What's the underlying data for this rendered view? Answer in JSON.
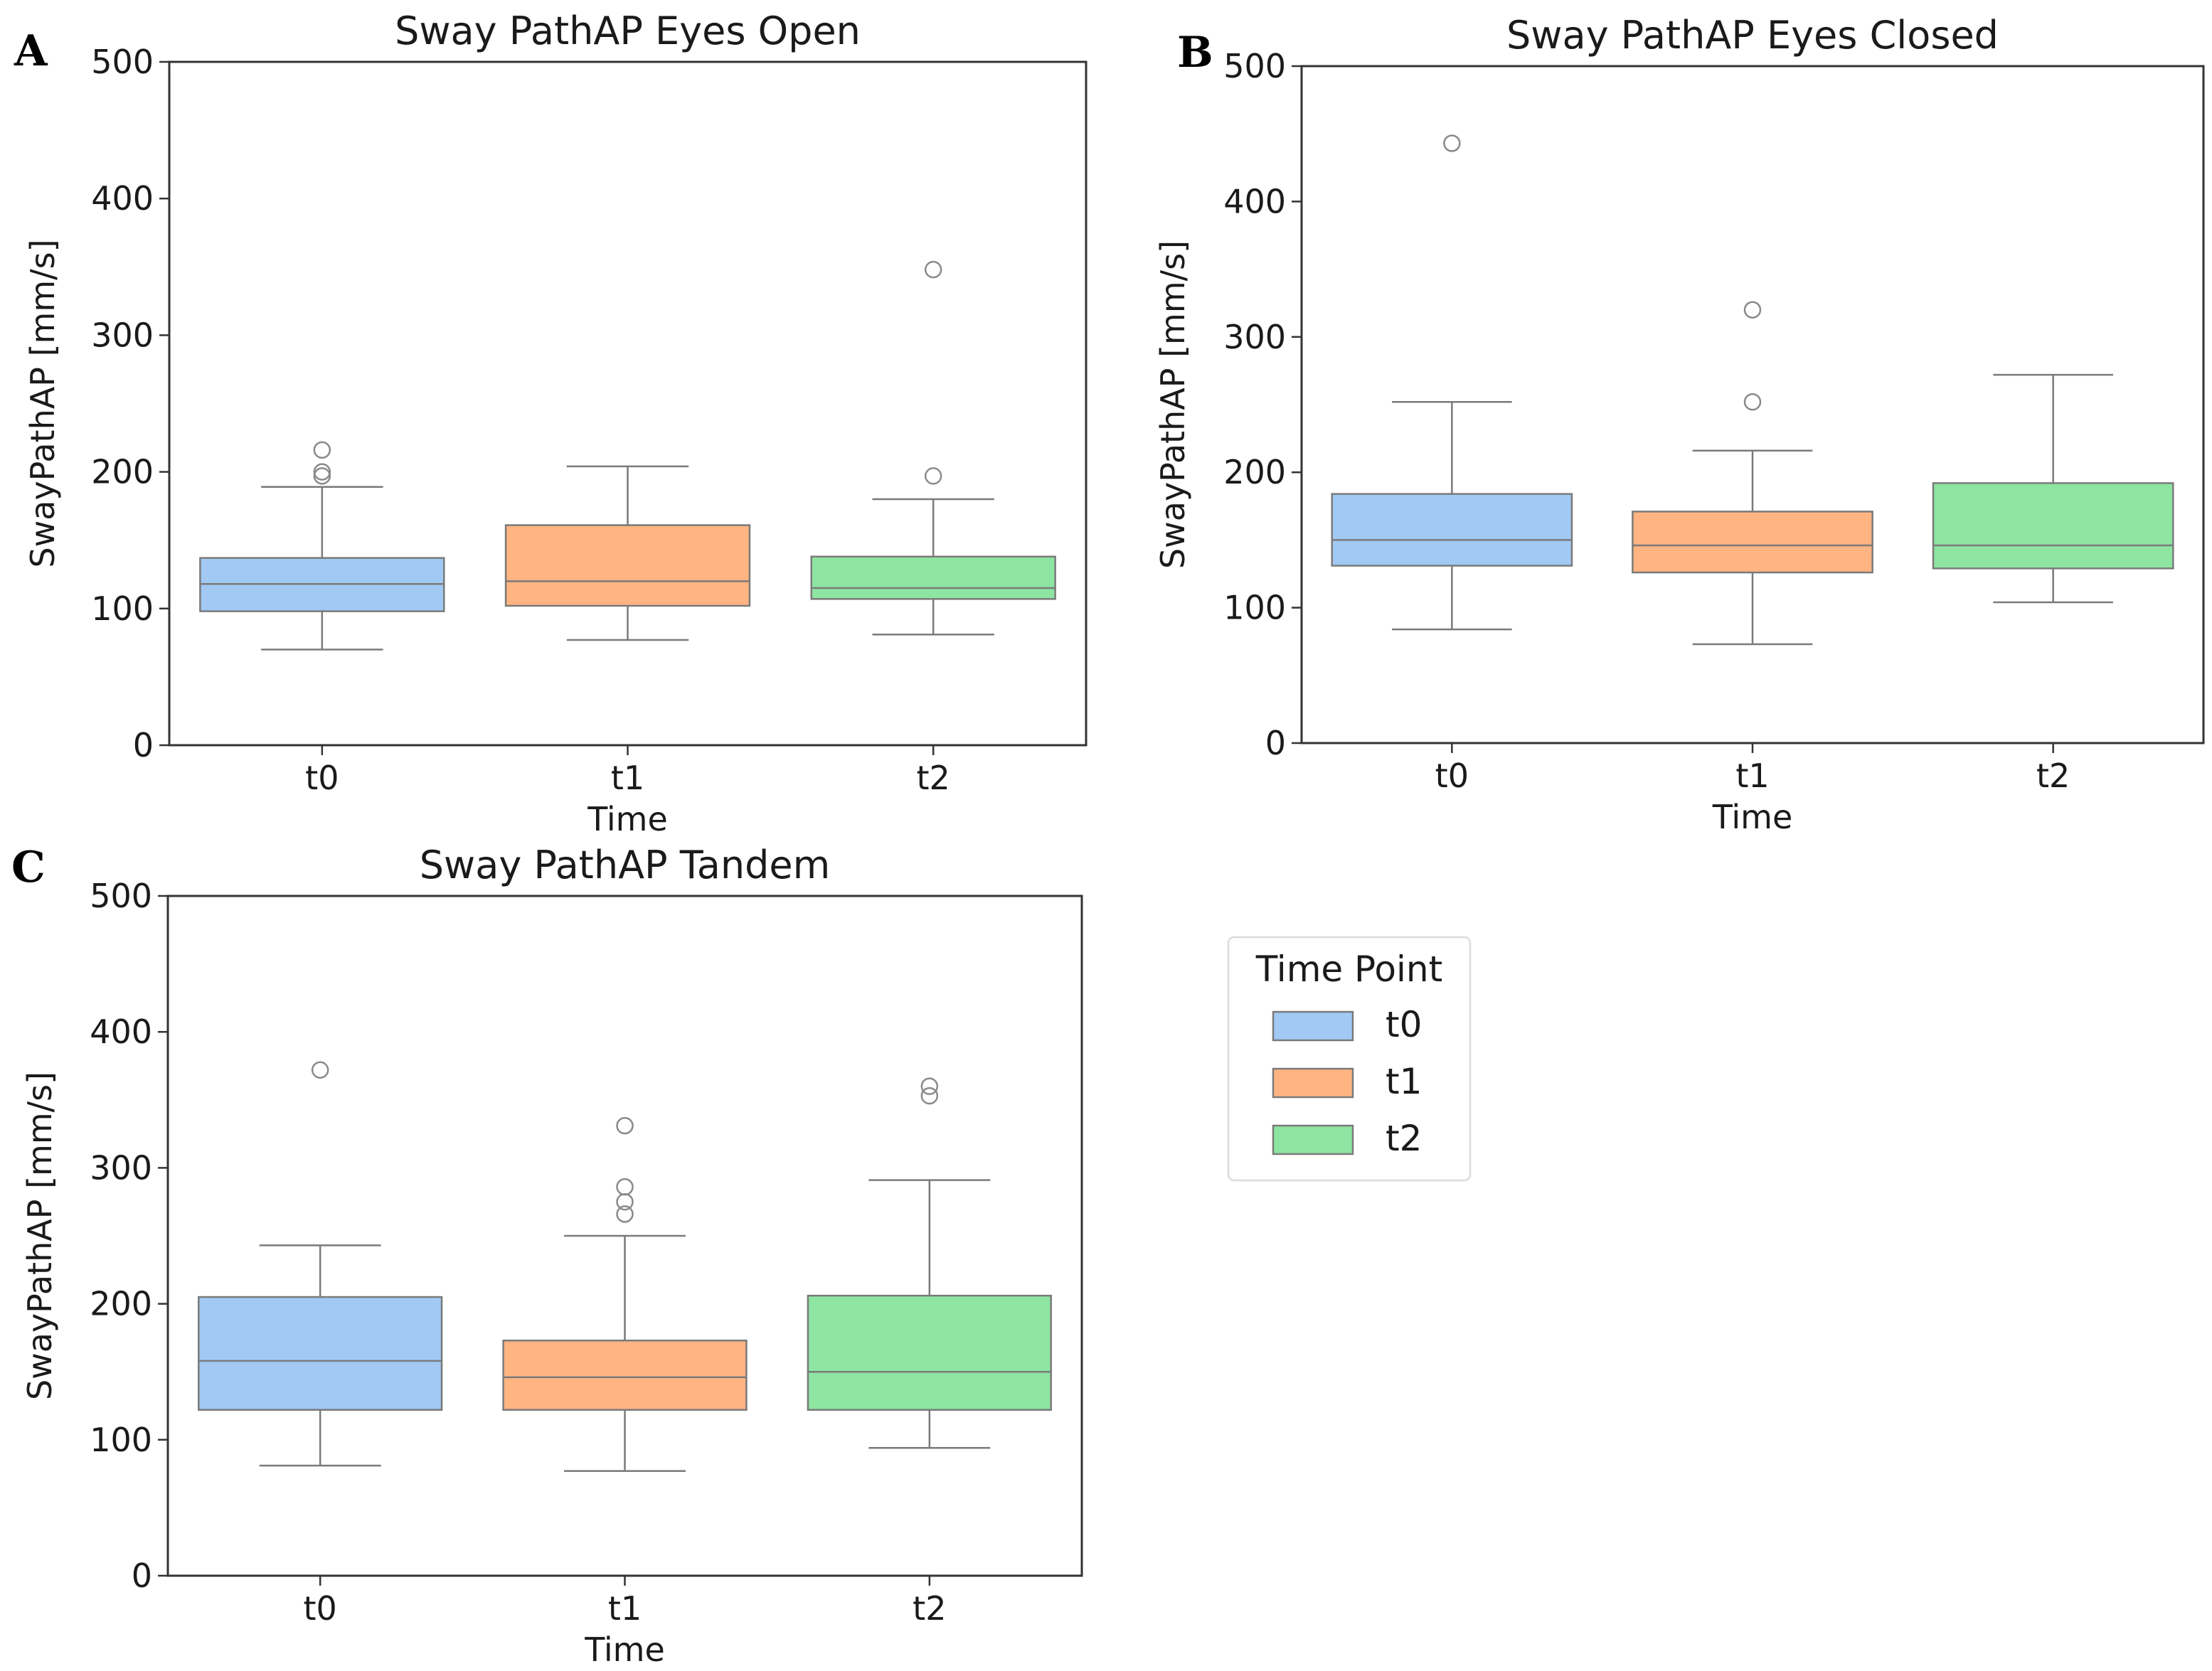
{
  "chart_data": [
    {
      "panel": "A",
      "type": "box",
      "title": "Sway PathAP Eyes Open",
      "xlabel": "Time",
      "ylabel": "SwayPathAP [mm/s]",
      "ylim": [
        0,
        500
      ],
      "yticks": [
        0,
        100,
        200,
        300,
        400,
        500
      ],
      "categories": [
        "t0",
        "t1",
        "t2"
      ],
      "boxes": [
        {
          "category": "t0",
          "whisker_low": 70,
          "q1": 98,
          "median": 118,
          "q3": 137,
          "whisker_high": 189,
          "outliers": [
            197,
            200,
            216
          ]
        },
        {
          "category": "t1",
          "whisker_low": 77,
          "q1": 102,
          "median": 120,
          "q3": 161,
          "whisker_high": 204,
          "outliers": []
        },
        {
          "category": "t2",
          "whisker_low": 81,
          "q1": 107,
          "median": 115,
          "q3": 138,
          "whisker_high": 180,
          "outliers": [
            197,
            348
          ]
        }
      ]
    },
    {
      "panel": "B",
      "type": "box",
      "title": "Sway PathAP Eyes Closed",
      "xlabel": "Time",
      "ylabel": "SwayPathAP [mm/s]",
      "ylim": [
        0,
        500
      ],
      "yticks": [
        0,
        100,
        200,
        300,
        400,
        500
      ],
      "categories": [
        "t0",
        "t1",
        "t2"
      ],
      "boxes": [
        {
          "category": "t0",
          "whisker_low": 84,
          "q1": 131,
          "median": 150,
          "q3": 184,
          "whisker_high": 252,
          "outliers": [
            443
          ]
        },
        {
          "category": "t1",
          "whisker_low": 73,
          "q1": 126,
          "median": 146,
          "q3": 171,
          "whisker_high": 216,
          "outliers": [
            252,
            320
          ]
        },
        {
          "category": "t2",
          "whisker_low": 104,
          "q1": 129,
          "median": 146,
          "q3": 192,
          "whisker_high": 272,
          "outliers": []
        }
      ]
    },
    {
      "panel": "C",
      "type": "box",
      "title": "Sway PathAP Tandem",
      "xlabel": "Time",
      "ylabel": "SwayPathAP [mm/s]",
      "ylim": [
        0,
        500
      ],
      "yticks": [
        0,
        100,
        200,
        300,
        400,
        500
      ],
      "categories": [
        "t0",
        "t1",
        "t2"
      ],
      "boxes": [
        {
          "category": "t0",
          "whisker_low": 81,
          "q1": 122,
          "median": 158,
          "q3": 205,
          "whisker_high": 243,
          "outliers": [
            372
          ]
        },
        {
          "category": "t1",
          "whisker_low": 77,
          "q1": 122,
          "median": 146,
          "q3": 173,
          "whisker_high": 250,
          "outliers": [
            266,
            275,
            286,
            331
          ]
        },
        {
          "category": "t2",
          "whisker_low": 94,
          "q1": 122,
          "median": 150,
          "q3": 206,
          "whisker_high": 291,
          "outliers": [
            353,
            360
          ]
        }
      ]
    }
  ],
  "legend": {
    "title": "Time Point",
    "placement": "lower-right",
    "items": [
      {
        "label": "t0",
        "color": "#a1c9f4"
      },
      {
        "label": "t1",
        "color": "#ffb482"
      },
      {
        "label": "t2",
        "color": "#8de5a1"
      }
    ]
  },
  "colors": {
    "t0": "#a1c9f4",
    "t1": "#ffb482",
    "t2": "#8de5a1",
    "box_edge": "#7a7a7a",
    "axis": "#333333"
  }
}
